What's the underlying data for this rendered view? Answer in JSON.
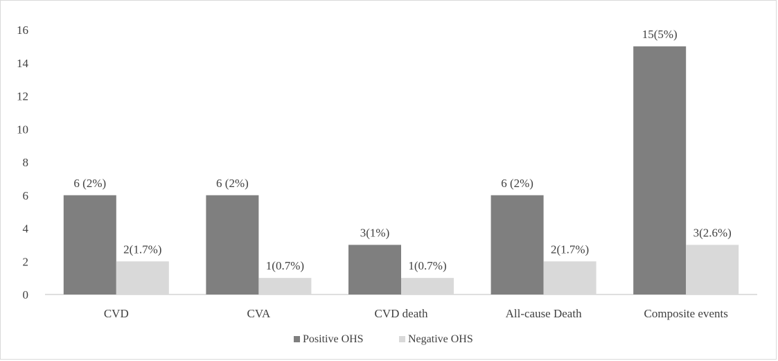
{
  "chart_data": {
    "type": "bar",
    "categories": [
      "CVD",
      "CVA",
      "CVD death",
      "All-cause Death",
      "Composite events"
    ],
    "series": [
      {
        "name": "Positive OHS",
        "color": "#7f7f7f",
        "values": [
          6,
          6,
          3,
          6,
          15
        ],
        "labels": [
          "6 (2%)",
          "6 (2%)",
          "3(1%)",
          "6 (2%)",
          "15(5%)"
        ]
      },
      {
        "name": "Negative OHS",
        "color": "#d9d9d9",
        "values": [
          2,
          1,
          1,
          2,
          3
        ],
        "labels": [
          "2(1.7%)",
          "1(0.7%)",
          "1(0.7%)",
          "2(1.7%)",
          "3(2.6%)"
        ]
      }
    ],
    "yticks": [
      "0",
      "2",
      "4",
      "6",
      "8",
      "10",
      "12",
      "14",
      "16"
    ],
    "ylim": [
      0,
      16
    ],
    "grid": false,
    "legend_position": "bottom"
  }
}
